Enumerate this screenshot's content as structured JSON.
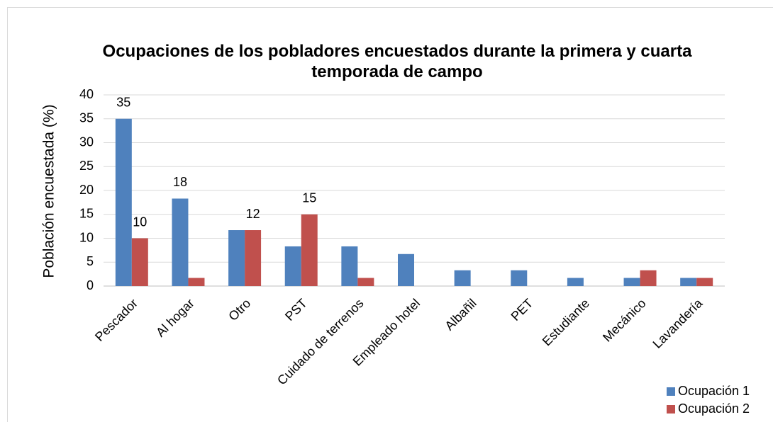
{
  "chart_data": {
    "type": "bar",
    "title": "Ocupaciones de los pobladores encuestados durante la primera y cuarta temporada de campo",
    "ylabel": "Población encuestada (%)",
    "categories": [
      "Pescador",
      "Al hogar",
      "Otro",
      "PST",
      "Cuidado de terrenos",
      "Empleado hotel",
      "Albañil",
      "PET",
      "Estudiante",
      "Mecánico",
      "Lavandería"
    ],
    "series": [
      {
        "name": "Ocupación 1",
        "color": "#4f81bd",
        "values": [
          35,
          18.3,
          11.7,
          8.3,
          8.3,
          6.7,
          3.3,
          3.3,
          1.7,
          1.7,
          1.7
        ],
        "value_labels": [
          "35",
          "18",
          null,
          null,
          null,
          null,
          null,
          null,
          null,
          null,
          null
        ]
      },
      {
        "name": "Ocupación 2",
        "color": "#c0504d",
        "values": [
          10,
          1.7,
          11.7,
          15,
          1.7,
          0,
          0,
          0,
          0,
          3.3,
          1.7
        ],
        "value_labels": [
          "10",
          null,
          "12",
          "15",
          null,
          null,
          null,
          null,
          null,
          null,
          null
        ]
      }
    ],
    "ylim": [
      0,
      40
    ],
    "yticks": [
      0,
      5,
      10,
      15,
      20,
      25,
      30,
      35,
      40
    ],
    "grid": true,
    "legend": "lower right"
  }
}
